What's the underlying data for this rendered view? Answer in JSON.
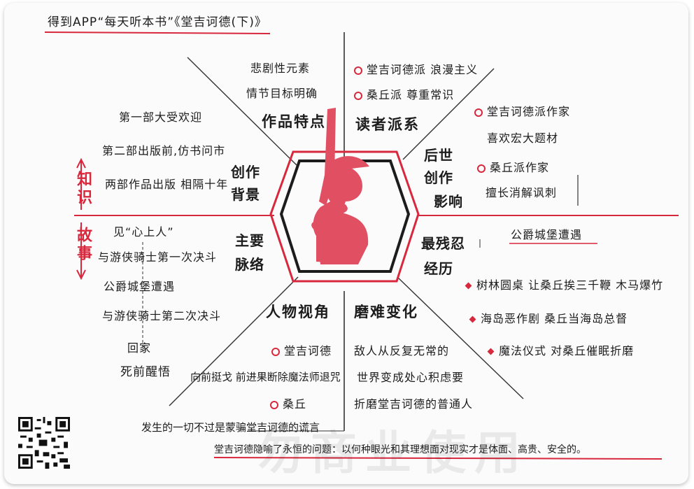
{
  "header": "得到APP“每天听本书”《堂吉诃德(下)》",
  "side_labels": {
    "top": "知识",
    "bottom": "故事"
  },
  "sections": {
    "features": {
      "title": "作品特点",
      "items": [
        "悲剧性元素",
        "情节目标明确"
      ]
    },
    "readers": {
      "title": "读者派系",
      "items": [
        "堂吉诃德派 浪漫主义",
        "桑丘派 尊重常识"
      ]
    },
    "influence": {
      "title_lines": [
        "后世",
        "创作",
        "影响"
      ],
      "items": [
        "堂吉诃德派作家",
        "喜欢宏大题材",
        "桑丘派作家",
        "擅长消解讽刺"
      ]
    },
    "background": {
      "title_lines": [
        "创作",
        "背景"
      ],
      "items": [
        "第一部大受欢迎",
        "第二部出版前,仿书问市",
        "两部作品出版 相隔十年"
      ]
    },
    "plot": {
      "title_lines": [
        "主要",
        "脉络"
      ],
      "items": [
        "见“心上人”",
        "与游侠骑士第一次决斗",
        "公爵城堡遭遇",
        "与游侠骑士第二次决斗",
        "回家",
        "死前醒悟"
      ]
    },
    "cruel": {
      "title_lines": [
        "最残忍",
        "经历"
      ],
      "subtitle": "公爵城堡遭遇",
      "items": [
        "树林圆桌 让桑丘挨三千鞭 木马爆竹",
        "海岛恶作剧 桑丘当海岛总督",
        "魔法仪式 对桑丘催眠折磨"
      ]
    },
    "perspective": {
      "title": "人物视角",
      "items": [
        "堂吉诃德",
        "向前挺戈 前进果断除魔法师退咒",
        "桑丘",
        "发生的一切不过是蒙骗堂吉诃德的谎言"
      ]
    },
    "change": {
      "title": "磨难变化",
      "items": [
        "敌人从反复无常的",
        "世界变成处心积虑要",
        "折磨堂吉诃德的普通人"
      ]
    }
  },
  "footer": "堂吉诃德隐喻了永恒的问题：以何种眼光和其理想面对现实才是体面、高贵、安全的。",
  "watermark": "勿商业使用",
  "colors": {
    "accent": "#d8283d",
    "ink": "#1c1c1c"
  }
}
